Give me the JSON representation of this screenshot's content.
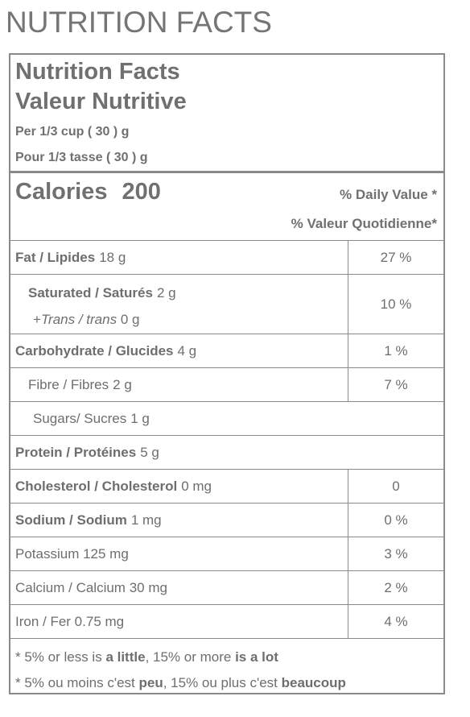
{
  "page_heading": "NUTRITION FACTS",
  "label": {
    "title_en": "Nutrition Facts",
    "title_fr": "Valeur Nutritive",
    "serving_en": "Per 1/3 cup ( 30 ) g",
    "serving_fr": "Pour 1/3 tasse ( 30 ) g",
    "calories_label": "Calories",
    "calories_value": "200",
    "dv_header_en": "% Daily Value *",
    "dv_header_fr": "% Valeur Quotidienne*",
    "fat": {
      "name": "Fat / Lipides",
      "amount": "18 g",
      "dv": "27 %"
    },
    "saturated": {
      "name": "Saturated / Saturés",
      "amount": "2 g",
      "trans_prefix": "+",
      "trans_name": "Trans / trans",
      "trans_amount": "0 g",
      "dv": "10 %"
    },
    "carbohydrate": {
      "name": "Carbohydrate / Glucides",
      "amount": "4 g",
      "dv": "1 %"
    },
    "fibre": {
      "name": "Fibre / Fibres",
      "amount": "2 g",
      "dv": "7 %"
    },
    "sugars": {
      "name": "Sugars/ Sucres",
      "amount": "1 g"
    },
    "protein": {
      "name": "Protein / Protéines",
      "amount": "5 g"
    },
    "cholesterol": {
      "name": "Cholesterol / Cholesterol",
      "amount": "0 mg",
      "dv": "0"
    },
    "sodium": {
      "name": "Sodium / Sodium",
      "amount": "1 mg",
      "dv": "0 %"
    },
    "potassium": {
      "text": "Potassium 125 mg",
      "dv": "3 %"
    },
    "calcium": {
      "text": "Calcium / Calcium 30 mg",
      "dv": "2 %"
    },
    "iron": {
      "text": "Iron / Fer 0.75 mg",
      "dv": "4 %"
    },
    "footnote_en": {
      "part1": "* 5% or less is ",
      "bold1": "a little",
      "part2": ", 15% or more ",
      "bold2": "is a lot"
    },
    "footnote_fr": {
      "part1": "* 5% ou moins c'est ",
      "bold1": "peu",
      "part2": ", 15% ou plus c'est ",
      "bold2": "beaucoup"
    }
  }
}
